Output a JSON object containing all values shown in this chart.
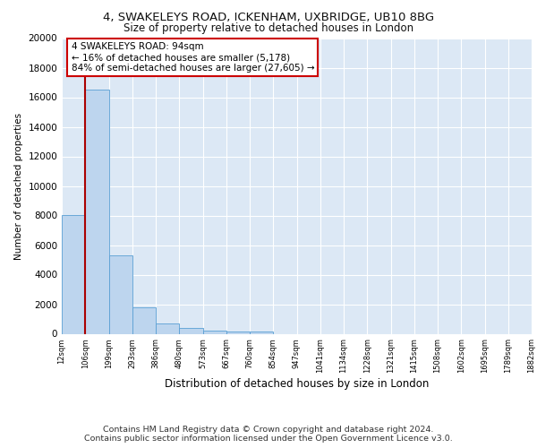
{
  "title_line1": "4, SWAKELEYS ROAD, ICKENHAM, UXBRIDGE, UB10 8BG",
  "title_line2": "Size of property relative to detached houses in London",
  "xlabel": "Distribution of detached houses by size in London",
  "ylabel": "Number of detached properties",
  "bin_labels": [
    "12sqm",
    "106sqm",
    "199sqm",
    "293sqm",
    "386sqm",
    "480sqm",
    "573sqm",
    "667sqm",
    "760sqm",
    "854sqm",
    "947sqm",
    "1041sqm",
    "1134sqm",
    "1228sqm",
    "1321sqm",
    "1415sqm",
    "1508sqm",
    "1602sqm",
    "1695sqm",
    "1789sqm",
    "1882sqm"
  ],
  "bar_values": [
    8050,
    16500,
    5300,
    1800,
    700,
    380,
    230,
    170,
    160,
    0,
    0,
    0,
    0,
    0,
    0,
    0,
    0,
    0,
    0,
    0,
    0
  ],
  "bar_color": "#bdd5ee",
  "bar_edge_color": "#5a9fd4",
  "background_color": "#dce8f5",
  "grid_color": "#ffffff",
  "property_label": "4 SWAKELEYS ROAD: 94sqm",
  "pct_smaller": "16% of detached houses are smaller (5,178)",
  "pct_larger": "84% of semi-detached houses are larger (27,605)",
  "vline_color": "#aa0000",
  "annotation_edge_color": "#cc0000",
  "ylim": [
    0,
    20000
  ],
  "yticks": [
    0,
    2000,
    4000,
    6000,
    8000,
    10000,
    12000,
    14000,
    16000,
    18000,
    20000
  ],
  "footer_line1": "Contains HM Land Registry data © Crown copyright and database right 2024.",
  "footer_line2": "Contains public sector information licensed under the Open Government Licence v3.0."
}
